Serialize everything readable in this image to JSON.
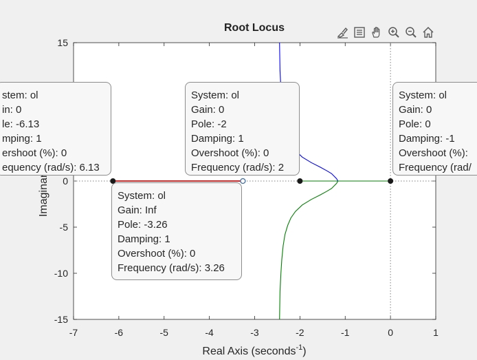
{
  "chart_data": {
    "type": "line",
    "title": "Root Locus",
    "xlabel": "Real Axis (seconds",
    "xlabel_sup": "-1",
    "ylabel": "Imaginary Axis",
    "xlim": [
      -7,
      1
    ],
    "ylim": [
      -15,
      15
    ],
    "xticks": [
      "-7",
      "-6",
      "-5",
      "-4",
      "-3",
      "-2",
      "-1",
      "0",
      "1"
    ],
    "yticks": [
      "15",
      "10",
      "5",
      "0",
      "-5",
      "-10",
      "-15"
    ],
    "colors": {
      "blue": "#0000ff",
      "green": "#008000",
      "red": "#d62728",
      "axis": "#262626",
      "grid": "#dcdcdc"
    },
    "series": [
      {
        "color": "#0000ff",
        "x": [
          -2.45,
          -2.44,
          -2.42,
          -2.4,
          -2.37,
          -2.33,
          -2.27,
          -2.2,
          -2.1,
          -1.95,
          -1.75,
          -1.55,
          -1.4,
          -1.3,
          -1.24,
          -1.19,
          -1.16
        ],
        "y": [
          15,
          12,
          10,
          8.5,
          7,
          5.8,
          4.8,
          4,
          3.3,
          2.6,
          2,
          1.5,
          1.1,
          0.8,
          0.5,
          0.25,
          0
        ]
      },
      {
        "color": "#008000",
        "x": [
          -2.45,
          -2.44,
          -2.42,
          -2.4,
          -2.37,
          -2.33,
          -2.27,
          -2.2,
          -2.1,
          -1.95,
          -1.75,
          -1.55,
          -1.4,
          -1.3,
          -1.24,
          -1.19,
          -1.16
        ],
        "y": [
          -15,
          -12,
          -10,
          -8.5,
          -7,
          -5.8,
          -4.8,
          -4,
          -3.3,
          -2.6,
          -2,
          -1.5,
          -1.1,
          -0.8,
          -0.5,
          -0.25,
          0
        ]
      },
      {
        "color": "#008000",
        "x": [
          -2,
          -1.16
        ],
        "y": [
          0,
          0
        ]
      },
      {
        "color": "#008000",
        "x": [
          0,
          -1.16
        ],
        "y": [
          0,
          0
        ]
      },
      {
        "color": "#d62728",
        "x": [
          -6.13,
          -3.26
        ],
        "y": [
          0,
          0
        ]
      }
    ],
    "poles": [
      {
        "x": -6.13,
        "y": 0
      },
      {
        "x": -2,
        "y": 0
      },
      {
        "x": 0,
        "y": 0
      }
    ],
    "selected_points": [
      {
        "x": -3.26,
        "y": 0
      }
    ],
    "datatips": [
      {
        "lines": [
          "stem: ol",
          "in: 0",
          "le: -6.13",
          "mping: 1",
          "ershoot (%): 0",
          "equency (rad/s): 6.13"
        ]
      },
      {
        "lines": [
          "System: ol",
          "Gain: 0",
          "Pole: -2",
          "Damping: 1",
          "Overshoot (%): 0",
          "Frequency (rad/s): 2"
        ]
      },
      {
        "lines": [
          "System: ol",
          "Gain: 0",
          "Pole: 0",
          "Damping: -1",
          "Overshoot (%):",
          "Frequency (rad/"
        ]
      },
      {
        "lines": [
          "System: ol",
          "Gain: Inf",
          "Pole: -3.26",
          "Damping: 1",
          "Overshoot (%): 0",
          "Frequency (rad/s): 3.26"
        ]
      }
    ]
  },
  "toolbar": [
    {
      "icon": "brush-icon"
    },
    {
      "icon": "legend-icon"
    },
    {
      "icon": "pan-hand-icon"
    },
    {
      "icon": "zoom-in-icon"
    },
    {
      "icon": "zoom-out-icon"
    },
    {
      "icon": "home-icon"
    }
  ]
}
